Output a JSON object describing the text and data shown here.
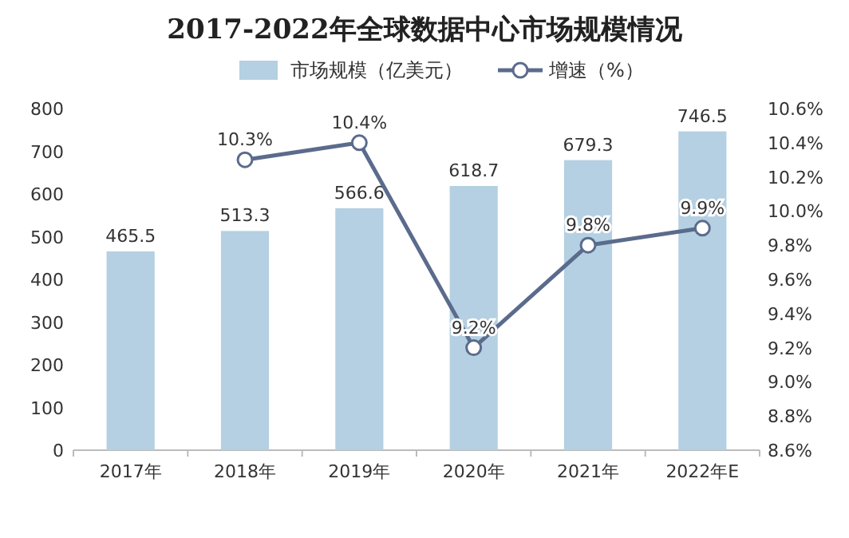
{
  "chart_data": {
    "type": "bar",
    "title": "2017-2022年全球数据中心市场规模情况",
    "categories": [
      "2017年",
      "2018年",
      "2019年",
      "2020年",
      "2021年",
      "2022年E"
    ],
    "series": [
      {
        "name": "市场规模（亿美元）",
        "color": "#b4d0e2",
        "values": [
          465.5,
          513.3,
          566.6,
          618.7,
          679.3,
          746.5
        ],
        "value_labels": [
          "465.5",
          "513.3",
          "566.6",
          "618.7",
          "679.3",
          "746.5"
        ]
      },
      {
        "name": "增速（%）",
        "type": "line",
        "axis": "y2",
        "color": "#5b6b8c",
        "marker": "circle",
        "values": [
          null,
          10.3,
          10.4,
          9.2,
          9.8,
          9.9
        ],
        "value_labels": [
          null,
          "10.3%",
          "10.4%",
          "9.2%",
          "9.8%",
          "9.9%"
        ]
      }
    ],
    "ylim": [
      0,
      800
    ],
    "yticks": [
      0,
      100,
      200,
      300,
      400,
      500,
      600,
      700,
      800
    ],
    "y2lim": [
      8.6,
      10.6
    ],
    "y2ticks": [
      {
        "value": 8.6,
        "label": "8.6%"
      },
      {
        "value": 8.8,
        "label": "8.8%"
      },
      {
        "value": 9.0,
        "label": "9.0%"
      },
      {
        "value": 9.2,
        "label": "9.2%"
      },
      {
        "value": 9.4,
        "label": "9.4%"
      },
      {
        "value": 9.6,
        "label": "9.6%"
      },
      {
        "value": 9.8,
        "label": "9.8%"
      },
      {
        "value": 10.0,
        "label": "10.0%"
      },
      {
        "value": 10.2,
        "label": "10.2%"
      },
      {
        "value": 10.4,
        "label": "10.4%"
      },
      {
        "value": 10.6,
        "label": "10.6%"
      }
    ],
    "legend": "top"
  }
}
